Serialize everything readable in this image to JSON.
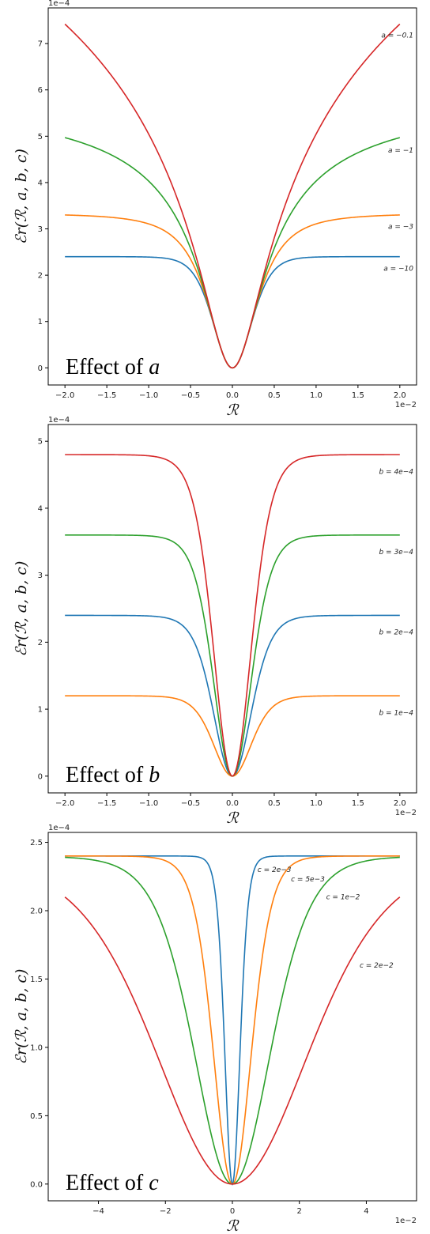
{
  "chart_data": [
    {
      "type": "line",
      "annotation": "Effect of a",
      "annotation_prefix": "Effect of ",
      "annotation_var": "a",
      "xlabel": "ℛ",
      "ylabel": "ℰr(ℛ, a, b, c)",
      "x_scale_label": "1e−2",
      "y_scale_label": "1e−4",
      "xlim": [
        -2.0,
        2.0
      ],
      "ylim": [
        0,
        7.4
      ],
      "xticks": [
        -2.0,
        -1.5,
        -1.0,
        -0.5,
        0.0,
        0.5,
        1.0,
        1.5,
        2.0
      ],
      "xtick_labels": [
        "−2.0",
        "−1.5",
        "−1.0",
        "−0.5",
        "0.0",
        "0.5",
        "1.0",
        "1.5",
        "2.0"
      ],
      "yticks": [
        0,
        1,
        2,
        3,
        4,
        5,
        6,
        7
      ],
      "ytick_labels": [
        "0",
        "1",
        "2",
        "3",
        "4",
        "5",
        "6",
        "7"
      ],
      "grid": false,
      "series": [
        {
          "name": "a = −10",
          "color": "#1f77b4",
          "x_edge": 2.0,
          "y_edge": 2.4,
          "x_label": 2.0,
          "y_label": 2.15
        },
        {
          "name": "a = −3",
          "color": "#ff7f0e",
          "x_edge": 2.0,
          "y_edge": 3.3,
          "x_label": 2.0,
          "y_label": 3.05
        },
        {
          "name": "a = −1",
          "color": "#2ca02c",
          "x_edge": 2.0,
          "y_edge": 4.97,
          "x_label": 2.0,
          "y_label": 4.7
        },
        {
          "name": "a = −0.1",
          "color": "#d62728",
          "x_edge": 2.0,
          "y_edge": 7.42,
          "x_label": 2.0,
          "y_label": 7.18
        }
      ]
    },
    {
      "type": "line",
      "annotation": "Effect of b",
      "annotation_prefix": "Effect of ",
      "annotation_var": "b",
      "xlabel": "ℛ",
      "ylabel": "ℰr(ℛ, a, b, c)",
      "x_scale_label": "1e−2",
      "y_scale_label": "1e−4",
      "xlim": [
        -2.0,
        2.0
      ],
      "ylim": [
        0,
        5.0
      ],
      "xticks": [
        -2.0,
        -1.5,
        -1.0,
        -0.5,
        0.0,
        0.5,
        1.0,
        1.5,
        2.0
      ],
      "xtick_labels": [
        "−2.0",
        "−1.5",
        "−1.0",
        "−0.5",
        "0.0",
        "0.5",
        "1.0",
        "1.5",
        "2.0"
      ],
      "yticks": [
        0,
        1,
        2,
        3,
        4,
        5
      ],
      "ytick_labels": [
        "0",
        "1",
        "2",
        "3",
        "4",
        "5"
      ],
      "grid": false,
      "series": [
        {
          "name": "b = 2e−4",
          "color": "#1f77b4",
          "x_edge": 2.0,
          "y_edge": 2.4,
          "x_label": 2.0,
          "y_label": 2.15
        },
        {
          "name": "b = 1e−4",
          "color": "#ff7f0e",
          "x_edge": 2.0,
          "y_edge": 1.2,
          "x_label": 2.0,
          "y_label": 0.95
        },
        {
          "name": "b = 3e−4",
          "color": "#2ca02c",
          "x_edge": 2.0,
          "y_edge": 3.6,
          "x_label": 2.0,
          "y_label": 3.35
        },
        {
          "name": "b = 4e−4",
          "color": "#d62728",
          "x_edge": 2.0,
          "y_edge": 4.8,
          "x_label": 2.0,
          "y_label": 4.55
        }
      ]
    },
    {
      "type": "line",
      "annotation": "Effect of c",
      "annotation_prefix": "Effect of ",
      "annotation_var": "c",
      "xlabel": "ℛ",
      "ylabel": "ℰr(ℛ, a, b, c)",
      "x_scale_label": "1e−2",
      "y_scale_label": "1e−4",
      "xlim": [
        -5.0,
        5.0
      ],
      "ylim": [
        0,
        2.45
      ],
      "xticks": [
        -4,
        -2,
        0,
        2,
        4
      ],
      "xtick_labels": [
        "−4",
        "−2",
        "0",
        "2",
        "4"
      ],
      "yticks": [
        0.0,
        0.5,
        1.0,
        1.5,
        2.0,
        2.5
      ],
      "ytick_labels": [
        "0.0",
        "0.5",
        "1.0",
        "1.5",
        "2.0",
        "2.5"
      ],
      "grid": false,
      "series": [
        {
          "name": "c = 2e−3",
          "color": "#1f77b4",
          "x_edge": 5.0,
          "y_edge": 2.4,
          "x_label": 0.75,
          "y_label": 2.3
        },
        {
          "name": "c = 5e−3",
          "color": "#ff7f0e",
          "x_edge": 5.0,
          "y_edge": 2.4,
          "x_label": 1.75,
          "y_label": 2.23
        },
        {
          "name": "c = 1e−2",
          "color": "#2ca02c",
          "x_edge": 5.0,
          "y_edge": 2.39,
          "x_label": 2.8,
          "y_label": 2.1
        },
        {
          "name": "c = 2e−2",
          "color": "#d62728",
          "x_edge": 5.0,
          "y_edge": 2.1,
          "x_label": 3.8,
          "y_label": 1.6
        }
      ]
    }
  ]
}
